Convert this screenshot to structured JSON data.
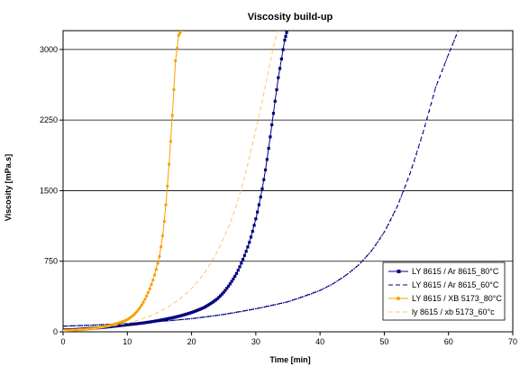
{
  "chart_data": {
    "type": "line",
    "title": "Viscosity build-up",
    "xlabel": "Time [min]",
    "ylabel": "Viscosity [mPa.s]",
    "xlim": [
      0,
      70
    ],
    "ylim": [
      0,
      3200
    ],
    "xticks": [
      0,
      10,
      20,
      30,
      40,
      50,
      60,
      70
    ],
    "yticks": [
      0,
      750,
      1500,
      2250,
      3000
    ],
    "grid": "horizontal",
    "legend_position": "bottom-right",
    "colors": {
      "navy": "#000080",
      "orange": "#F5A000",
      "light_orange": "#FFC766"
    },
    "series": [
      {
        "name": "LY 8615 / Ar 8615_80°C",
        "style": "solid-square-markers",
        "color": "#000080",
        "x": [
          0,
          2,
          4,
          6,
          8,
          10,
          12,
          14,
          16,
          18,
          20,
          22,
          24,
          25,
          26,
          27,
          28,
          29,
          30,
          30.5,
          31,
          31.5,
          32,
          32.5,
          33,
          33.5,
          34,
          34.5,
          34.8
        ],
        "y": [
          20,
          25,
          35,
          45,
          60,
          75,
          90,
          110,
          135,
          165,
          205,
          260,
          350,
          420,
          510,
          620,
          770,
          950,
          1200,
          1350,
          1520,
          1720,
          1950,
          2200,
          2450,
          2700,
          2900,
          3100,
          3180
        ]
      },
      {
        "name": "LY 8615 / Ar 8615_60°C",
        "style": "dashed-small-markers",
        "color": "#000080",
        "x": [
          0,
          5,
          10,
          15,
          20,
          25,
          30,
          35,
          40,
          42,
          44,
          46,
          48,
          50,
          52,
          54,
          56,
          58,
          60,
          61.5
        ],
        "y": [
          60,
          72,
          88,
          110,
          140,
          185,
          245,
          320,
          440,
          510,
          600,
          710,
          860,
          1060,
          1330,
          1680,
          2110,
          2600,
          2950,
          3200
        ]
      },
      {
        "name": "LY 8615 / XB 5173_80°C",
        "style": "solid-circle-markers",
        "color": "#F5A000",
        "x": [
          0,
          2,
          4,
          6,
          8,
          10,
          11,
          12,
          13,
          14,
          15,
          15.5,
          16,
          16.5,
          17,
          17.5,
          18,
          18.4
        ],
        "y": [
          15,
          20,
          30,
          50,
          80,
          130,
          180,
          260,
          380,
          550,
          800,
          1020,
          1350,
          1780,
          2300,
          2880,
          3150,
          3200
        ]
      },
      {
        "name": "ly 8615 / xb 5173_60°c",
        "style": "dashed",
        "color": "#FFC766",
        "x": [
          0,
          2,
          4,
          6,
          8,
          10,
          12,
          14,
          16,
          18,
          20,
          22,
          24,
          26,
          27,
          28,
          29,
          30,
          31,
          32,
          32.5,
          33,
          33.5
        ],
        "y": [
          10,
          20,
          30,
          45,
          65,
          90,
          130,
          180,
          250,
          340,
          460,
          620,
          850,
          1150,
          1350,
          1580,
          1850,
          2150,
          2450,
          2780,
          2950,
          3100,
          3200
        ]
      }
    ]
  }
}
